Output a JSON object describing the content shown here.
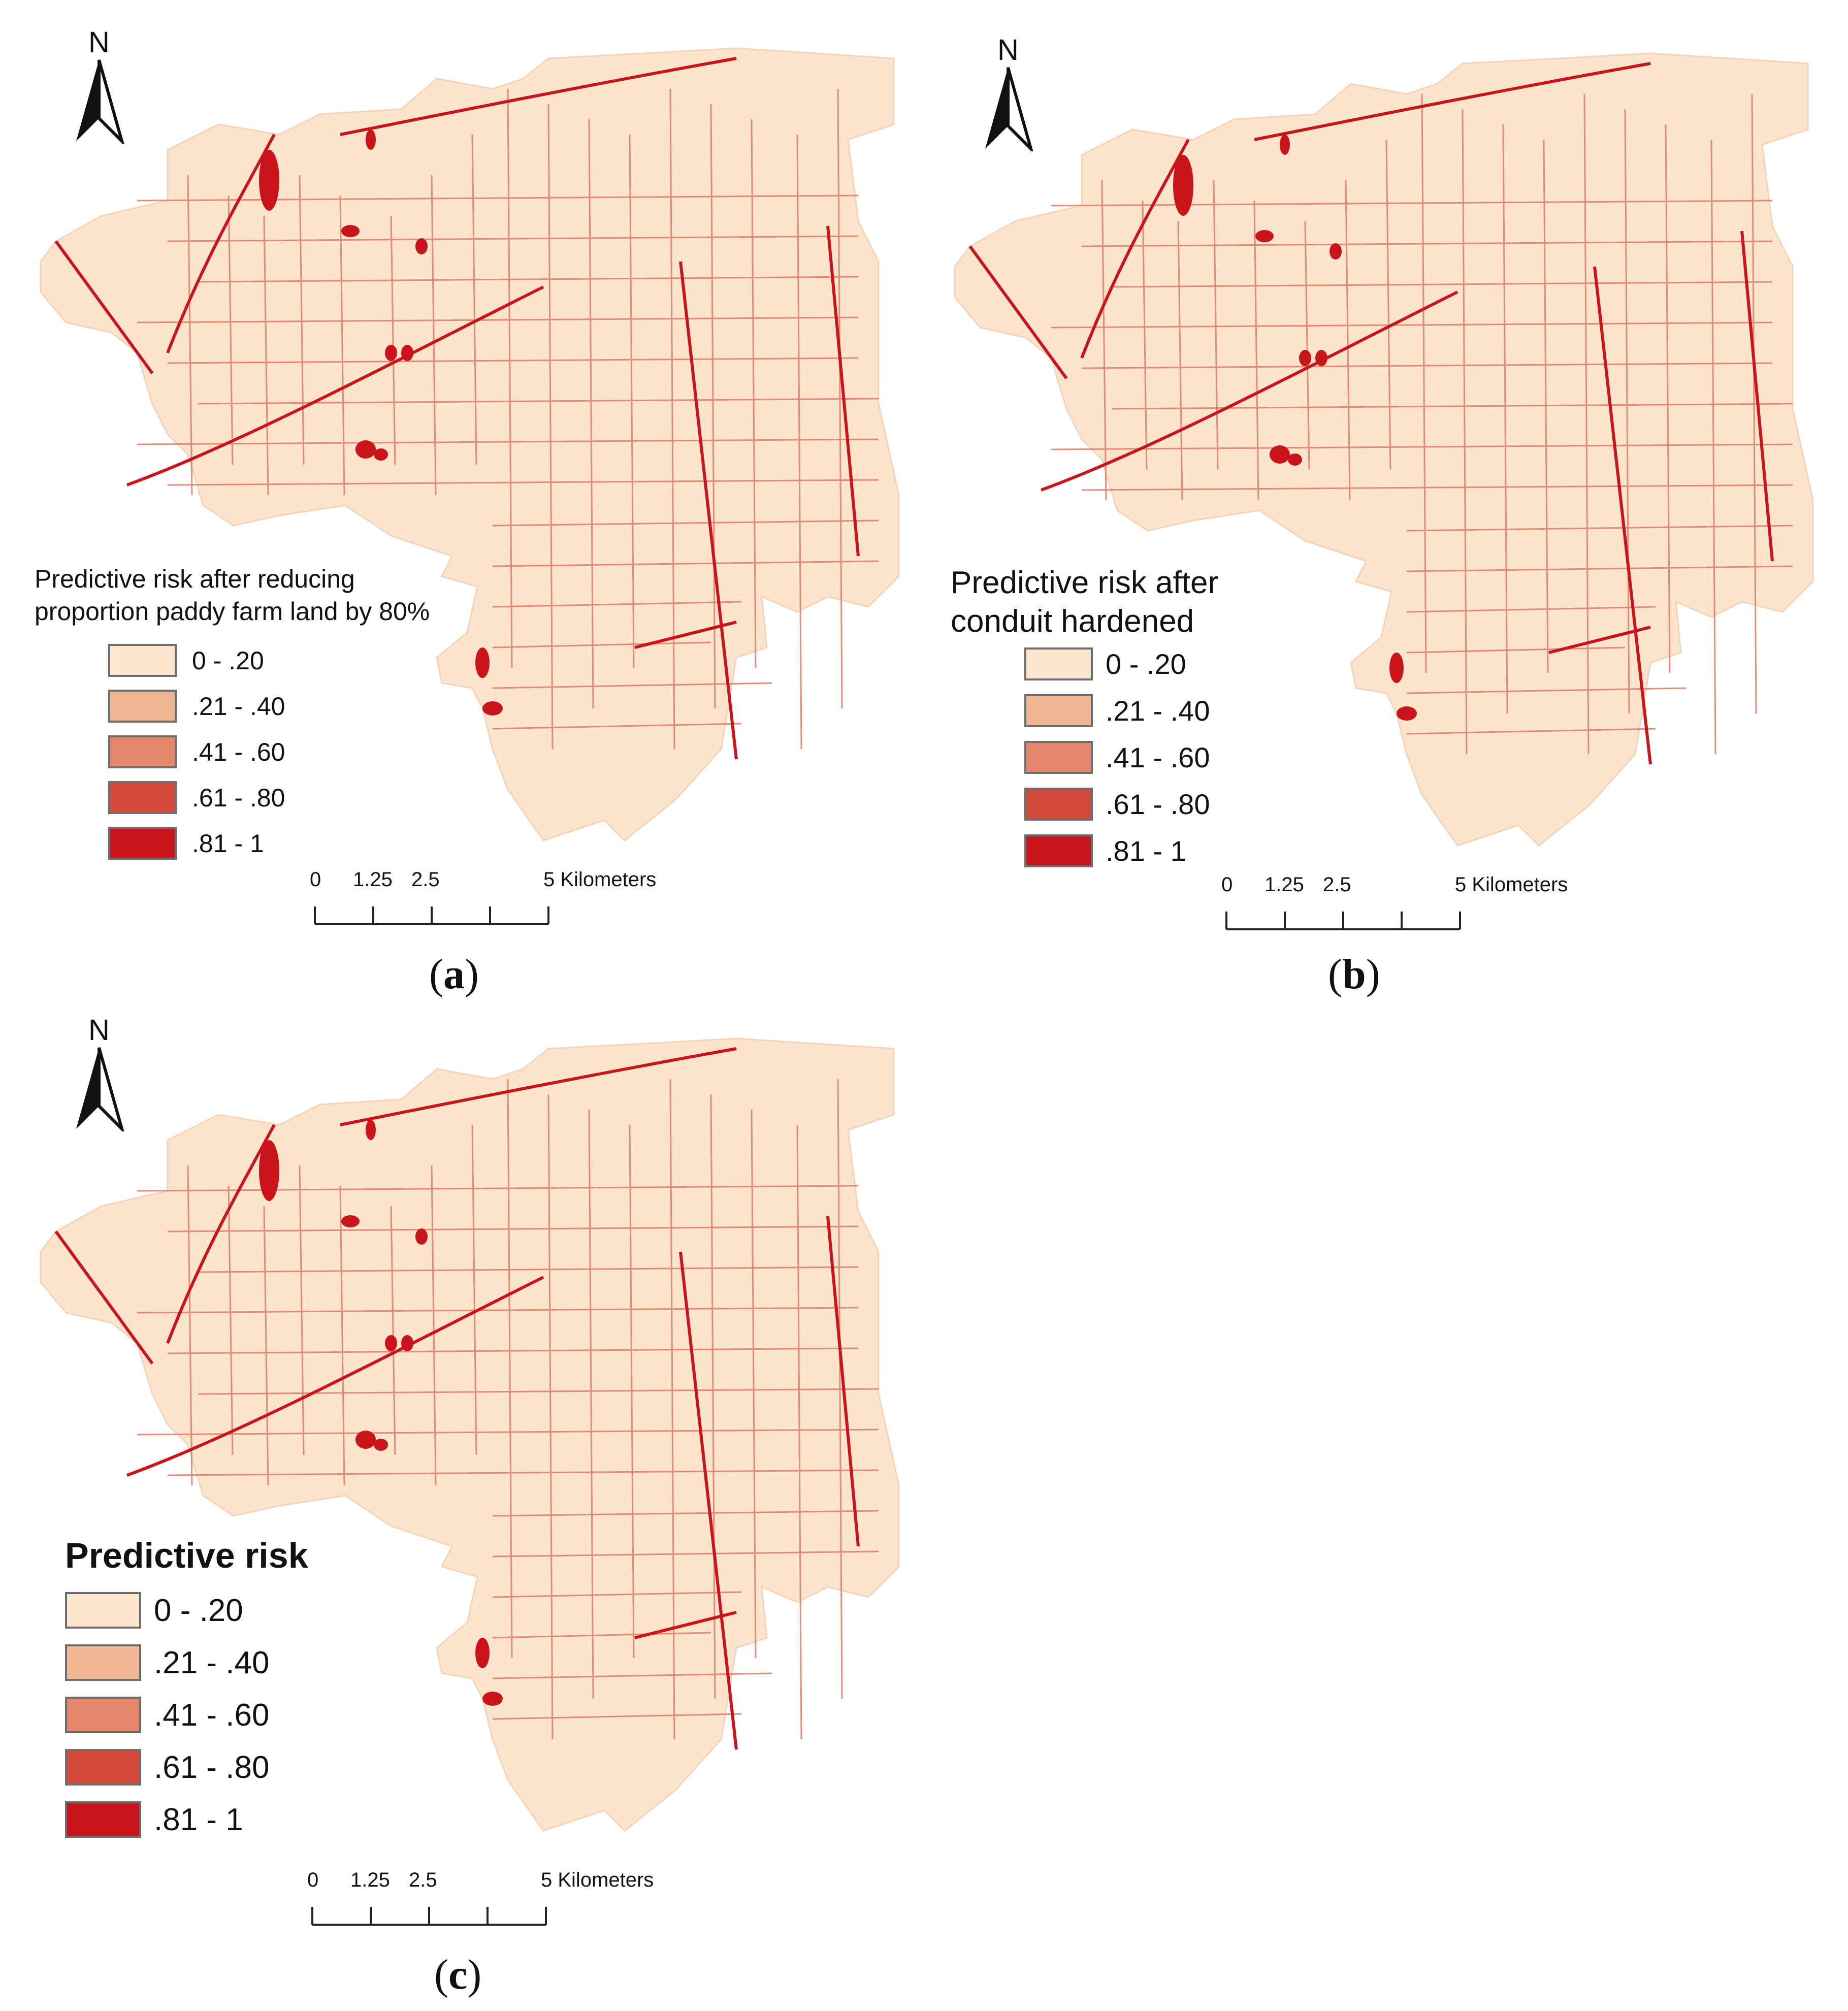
{
  "compass": {
    "letter": "N",
    "icon": "north-arrow-icon"
  },
  "legend_colors": [
    "#fde6d0",
    "#f0b893",
    "#e3866a",
    "#d44a3a",
    "#c8141a"
  ],
  "map_colors": {
    "land": "#fde4cc",
    "road": "#c8141a",
    "road_light": "#e07a66"
  },
  "panels": [
    {
      "label_letter": "a",
      "legend_title_lines": [
        "Predictive risk after reducing",
        "proportion paddy farm land by 80%"
      ],
      "legend_items": [
        "0 - .20",
        ".21 - .40",
        ".41 - .60",
        ".61 - .80",
        ".81 - 1"
      ],
      "scale": {
        "ticks": [
          "0",
          "1.25",
          "2.5",
          "5 Kilometers"
        ]
      }
    },
    {
      "label_letter": "b",
      "legend_title_lines": [
        "Predictive risk after",
        "conduit hardened"
      ],
      "legend_items": [
        "0 - .20",
        ".21 - .40",
        ".41 - .60",
        ".61 - .80",
        ".81 - 1"
      ],
      "scale": {
        "ticks": [
          "0",
          "1.25",
          "2.5",
          "5 Kilometers"
        ]
      }
    },
    {
      "label_letter": "c",
      "legend_title_lines": [
        "Predictive risk"
      ],
      "legend_items": [
        "0 - .20",
        ".21 - .40",
        ".41 - .60",
        ".61 - .80",
        ".81 - 1"
      ],
      "scale": {
        "ticks": [
          "0",
          "1.25",
          "2.5",
          "5 Kilometers"
        ]
      }
    }
  ]
}
